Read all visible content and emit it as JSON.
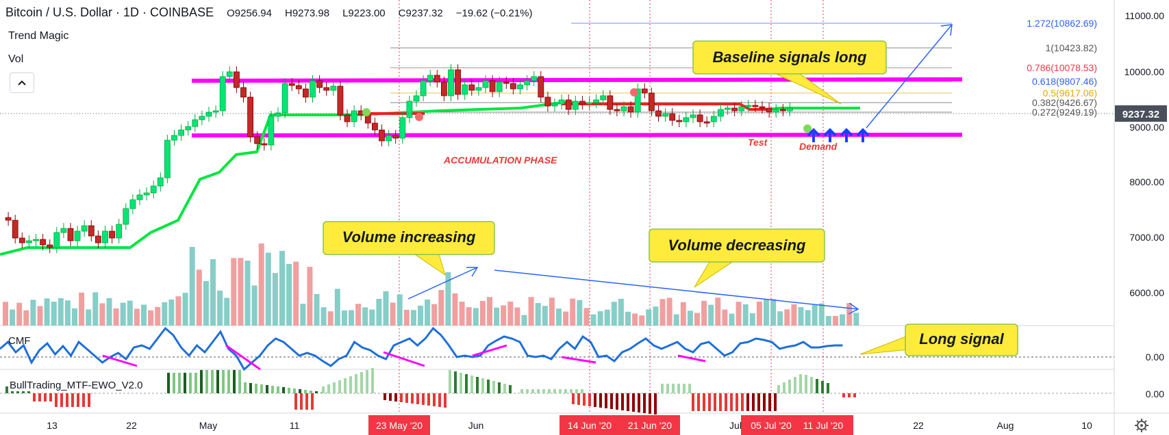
{
  "header": {
    "symbol": "Bitcoin / U.S. Dollar · 1D · COINBASE",
    "open": "O9256.94",
    "high": "H9273.98",
    "low": "L9223.00",
    "close": "C9237.32",
    "change": "−19.62 (−0.21%)"
  },
  "indicators": {
    "trend_magic": "Trend Magic",
    "vol": "Vol",
    "cmf": "CMF",
    "ewo": "BullTrading_MTF-EWO_V2.0"
  },
  "price_axis": {
    "ticks": [
      "11000.00",
      "10000.00",
      "9000.00",
      "8000.00",
      "7000.00",
      "6000.00"
    ],
    "current": "9237.32",
    "cmf_tick": "0.00",
    "ewo_tick": "0.00"
  },
  "fib_levels": [
    {
      "label": "1.272(10862.69)",
      "color": "#2962ff"
    },
    {
      "label": "1(10423.82)",
      "color": "#555555"
    },
    {
      "label": "0.786(10078.53)",
      "color": "#f23645"
    },
    {
      "label": "0.618(9807.46)",
      "color": "#2962ff"
    },
    {
      "label": "0.5(9617.06)",
      "color": "#e6a800"
    },
    {
      "label": "0.382(9426.67)",
      "color": "#555555"
    },
    {
      "label": "0.272(9249.19)",
      "color": "#555555"
    }
  ],
  "time_axis": {
    "ticks": [
      "13",
      "22",
      "May",
      "11",
      "Jun",
      "Jul",
      "22",
      "Aug",
      "10"
    ],
    "highlighted": [
      "23 May '20",
      "14 Jun '20",
      "21 Jun '20",
      "05 Jul '20",
      "11 Jul '20"
    ]
  },
  "annotations": {
    "baseline": "Baseline signals long",
    "vol_inc": "Volume increasing",
    "vol_dec": "Volume decreasing",
    "long_signal": "Long signal",
    "accumulation": "ACCUMULATION PHASE",
    "test": "Test",
    "demand": "Demand"
  },
  "colors": {
    "bull": "#26a69a",
    "candle_up": "#00e676",
    "candle_down": "#c62828",
    "magenta": "#ff00ff",
    "callout": "#ffeb3b",
    "cmf_line": "#1e6fd9",
    "cmf_neg": "#ff00ff"
  }
}
